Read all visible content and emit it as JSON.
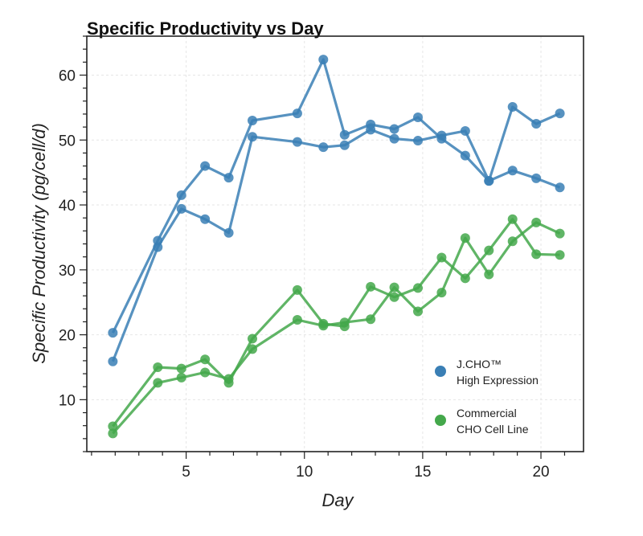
{
  "chart_data": {
    "type": "line",
    "title": "Specific Productivity  vs  Day",
    "xlabel": "Day",
    "ylabel": "Specific Productivity (pg/cell/d)",
    "xlim": [
      0.8,
      21.8
    ],
    "ylim": [
      2,
      66
    ],
    "xticks": [
      5,
      10,
      15,
      20
    ],
    "yticks": [
      10,
      20,
      30,
      40,
      50,
      60
    ],
    "grid": true,
    "legend_position": "bottom-right",
    "series": [
      {
        "name": "J.CHO™ High Expression",
        "legend_lines": [
          "J.CHO™",
          "High Expression"
        ],
        "color": "#3a7fb5",
        "x": [
          1.9,
          3.8,
          4.8,
          5.8,
          6.8,
          7.8,
          9.7,
          10.8,
          11.7,
          12.8,
          13.8,
          14.8,
          15.8,
          16.8,
          17.8,
          18.8,
          19.8,
          20.8
        ],
        "y": [
          20.3,
          34.5,
          41.5,
          46.0,
          44.2,
          53.0,
          54.1,
          62.4,
          50.8,
          52.4,
          51.7,
          53.5,
          50.2,
          47.6,
          43.7,
          45.3,
          44.1,
          42.7
        ]
      },
      {
        "name": "J.CHO™ High Expression",
        "legend_lines": [
          "J.CHO™",
          "High Expression"
        ],
        "color": "#3a7fb5",
        "x": [
          1.9,
          3.8,
          4.8,
          5.8,
          6.8,
          7.8,
          9.7,
          10.8,
          11.7,
          12.8,
          13.8,
          14.8,
          15.8,
          16.8,
          17.8,
          18.8,
          19.8,
          20.8
        ],
        "y": [
          15.9,
          33.5,
          39.4,
          37.8,
          35.7,
          50.5,
          49.7,
          48.9,
          49.2,
          51.6,
          50.2,
          49.9,
          50.7,
          51.4,
          43.7,
          55.1,
          52.5,
          54.1
        ]
      },
      {
        "name": "Commercial CHO Cell Line",
        "legend_lines": [
          "Commercial",
          "CHO Cell Line"
        ],
        "color": "#44a84b",
        "x": [
          1.9,
          3.8,
          4.8,
          5.8,
          6.8,
          7.8,
          9.7,
          10.8,
          11.7,
          12.8,
          13.8,
          14.8,
          15.8,
          16.8,
          17.8,
          18.8,
          19.8,
          20.8
        ],
        "y": [
          5.9,
          15.0,
          14.8,
          16.2,
          12.6,
          19.4,
          26.9,
          21.7,
          21.3,
          27.4,
          25.8,
          27.2,
          31.9,
          28.7,
          33.0,
          37.8,
          32.4,
          32.3
        ]
      },
      {
        "name": "Commercial CHO Cell Line",
        "legend_lines": [
          "Commercial",
          "CHO Cell Line"
        ],
        "color": "#44a84b",
        "x": [
          1.9,
          3.8,
          4.8,
          5.8,
          6.8,
          7.8,
          9.7,
          10.8,
          11.7,
          12.8,
          13.8,
          14.8,
          15.8,
          16.8,
          17.8,
          18.8,
          19.8,
          20.8
        ],
        "y": [
          4.8,
          12.6,
          13.4,
          14.2,
          13.2,
          17.8,
          22.3,
          21.4,
          21.9,
          22.4,
          27.3,
          23.6,
          26.5,
          34.9,
          29.3,
          34.4,
          37.3,
          35.6
        ]
      }
    ],
    "legend": [
      {
        "lines": [
          "J.CHO™",
          "High Expression"
        ],
        "color": "#3a7fb5"
      },
      {
        "lines": [
          "Commercial",
          "CHO Cell Line"
        ],
        "color": "#44a84b"
      }
    ]
  }
}
